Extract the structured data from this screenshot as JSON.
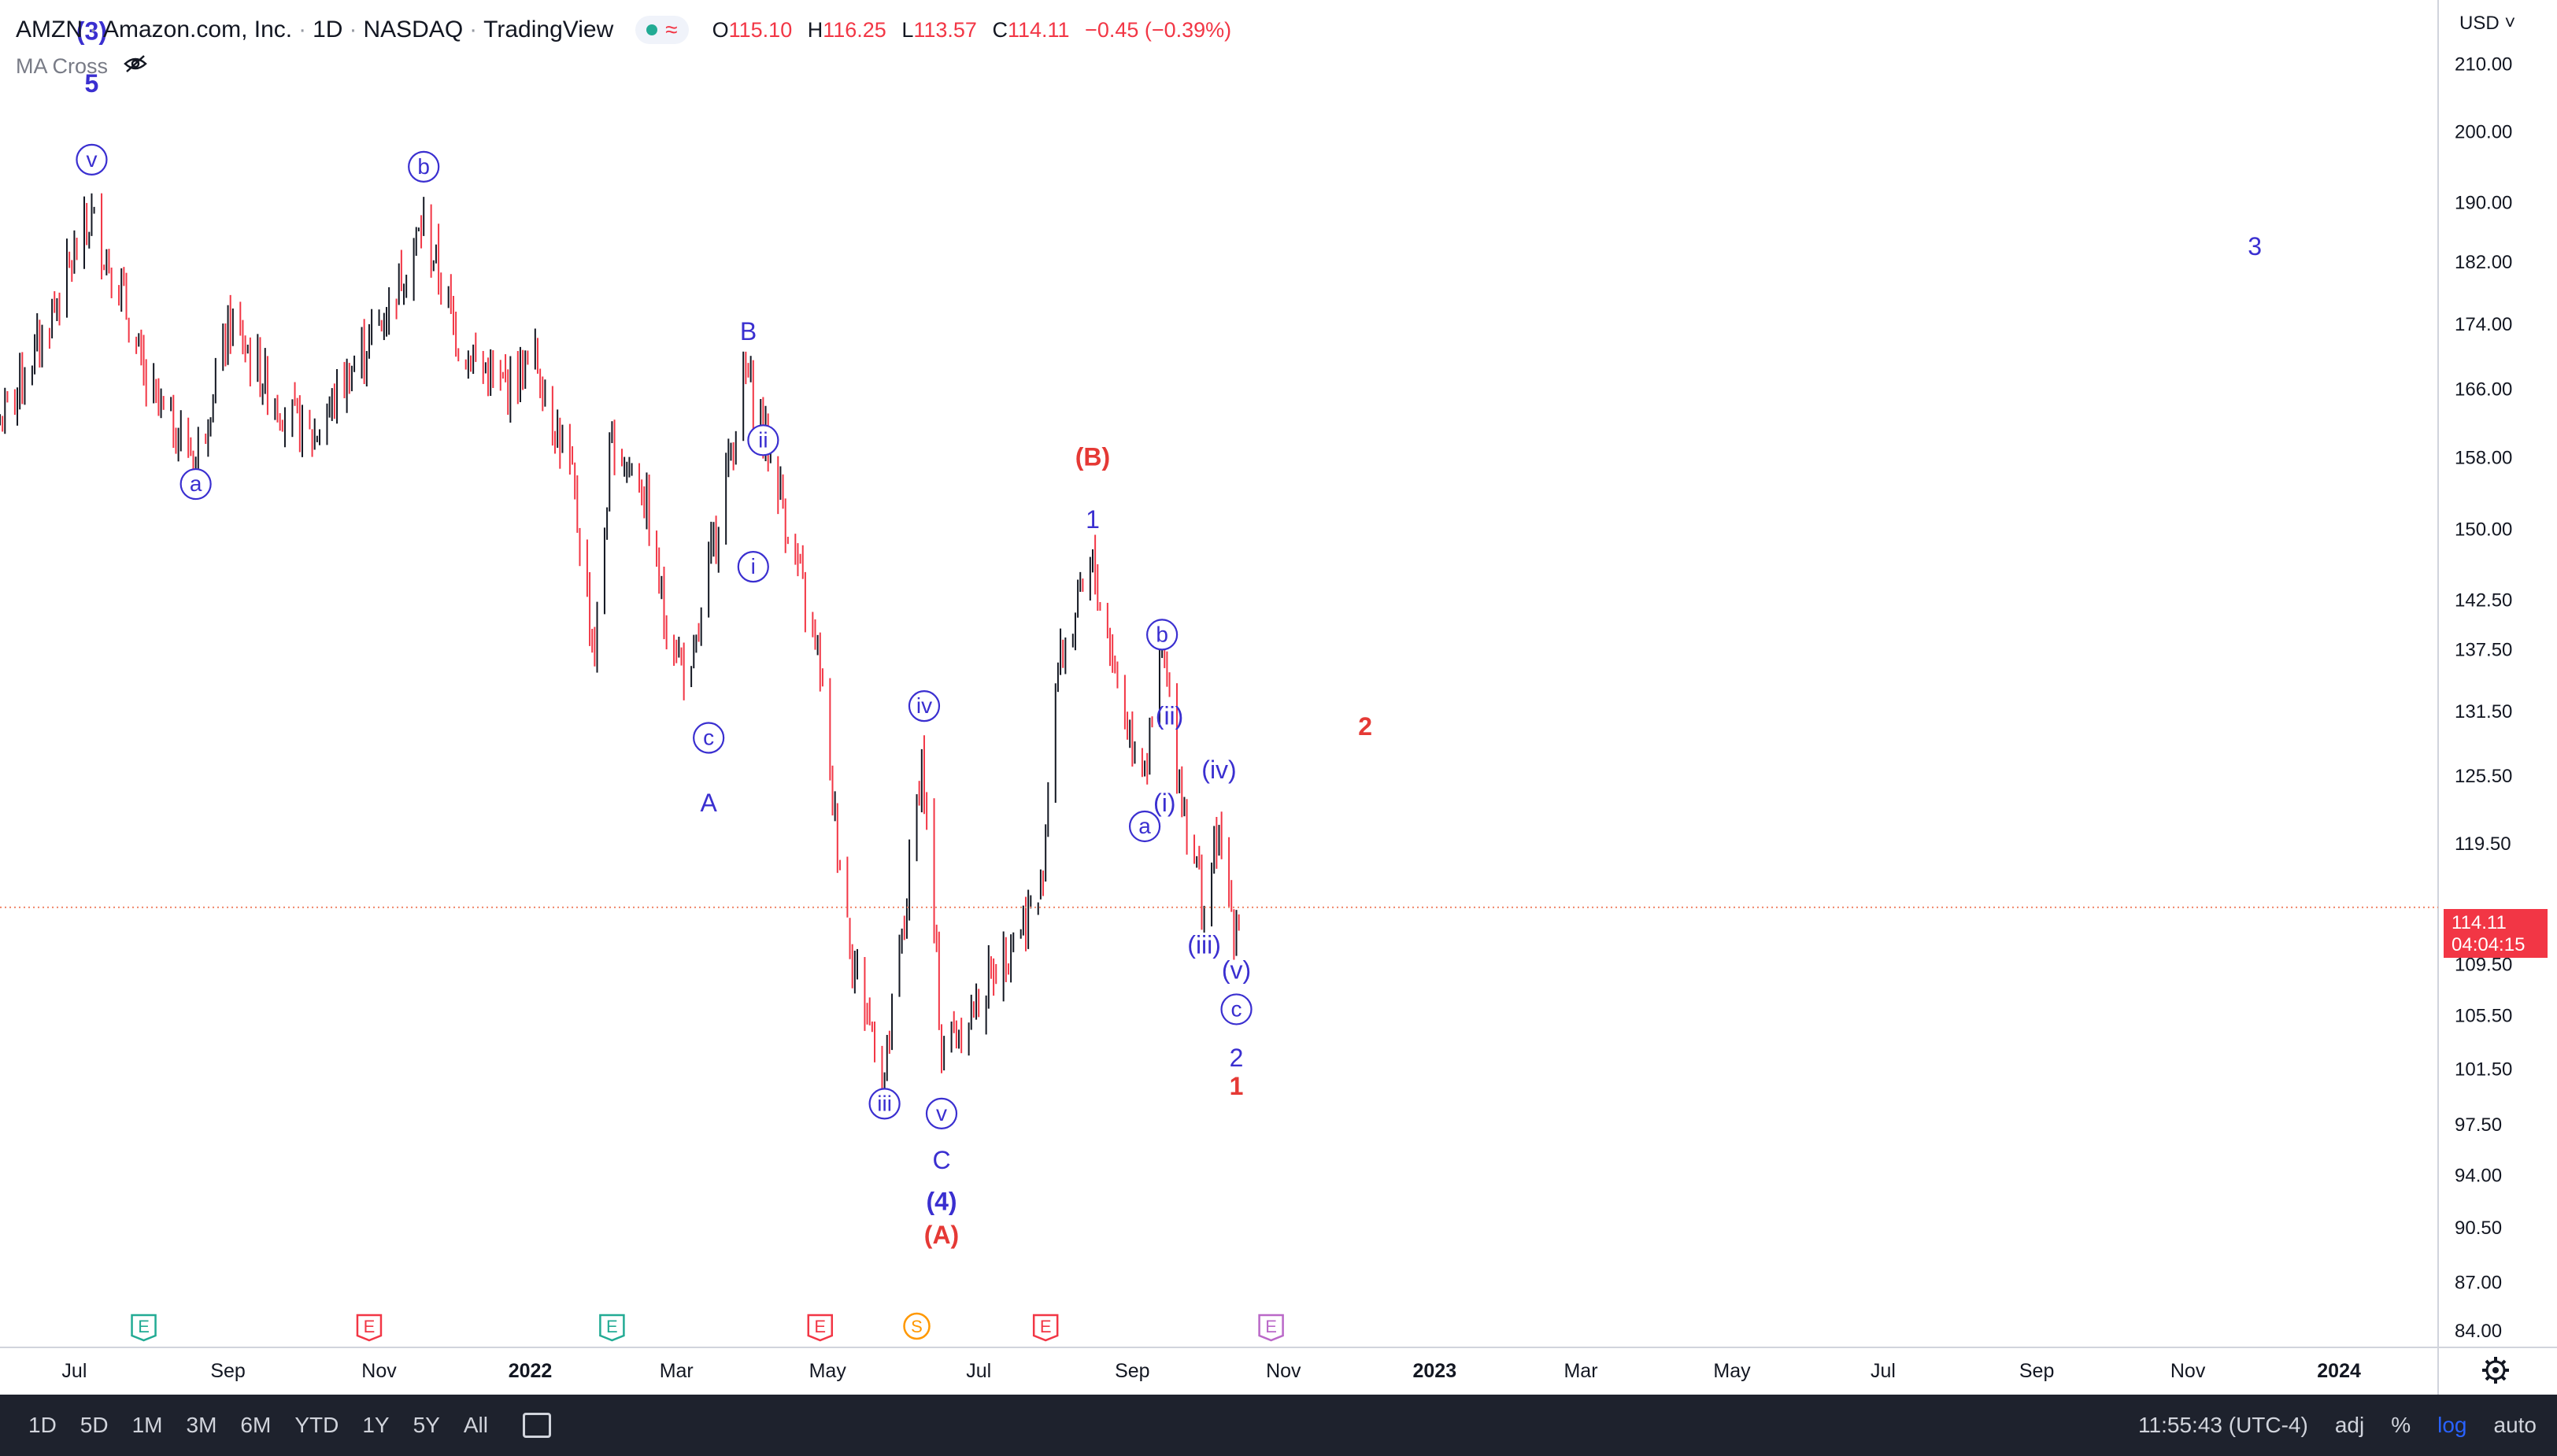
{
  "header": {
    "ticker": "AMZN",
    "company": "Amazon.com, Inc.",
    "interval": "1D",
    "exchange": "NASDAQ",
    "source": "TradingView",
    "o_label": "O",
    "o_value": "115.10",
    "h_label": "H",
    "h_value": "116.25",
    "l_label": "L",
    "l_value": "113.57",
    "c_label": "C",
    "c_value": "114.11",
    "change": "−0.45 (−0.39%)"
  },
  "indicator": {
    "name": "MA Cross",
    "icon": "eye-off-icon"
  },
  "currency": "USD",
  "current_price": {
    "price": "114.11",
    "countdown": "04:04:15"
  },
  "colors": {
    "up": "#131722",
    "down": "#f23645",
    "wave_blue": "#3a2fd0",
    "wave_red": "#e53935",
    "price_line": "#f0866a"
  },
  "bottom_bar": {
    "ranges": [
      "1D",
      "5D",
      "1M",
      "3M",
      "6M",
      "YTD",
      "1Y",
      "5Y",
      "All"
    ],
    "time": "11:55:43 (UTC-4)",
    "adj": "adj",
    "pct": "%",
    "log": "log",
    "auto": "auto"
  },
  "chart_data": {
    "type": "candlestick",
    "y_scale": "log",
    "ylim": [
      83,
      220
    ],
    "xlim": [
      "2021-06-01",
      "2024-02-10"
    ],
    "y_ticks": [
      "84.00",
      "87.00",
      "90.50",
      "94.00",
      "97.50",
      "101.50",
      "105.50",
      "109.50",
      "114.11",
      "119.50",
      "125.50",
      "131.50",
      "137.50",
      "142.50",
      "150.00",
      "158.00",
      "166.00",
      "174.00",
      "182.00",
      "190.00",
      "200.00",
      "210.00"
    ],
    "x_ticks": [
      {
        "label": "Jul",
        "date": "2021-07-01"
      },
      {
        "label": "Sep",
        "date": "2021-09-01"
      },
      {
        "label": "Nov",
        "date": "2021-11-01"
      },
      {
        "label": "2022",
        "date": "2022-01-01",
        "bold": true
      },
      {
        "label": "Mar",
        "date": "2022-03-01"
      },
      {
        "label": "May",
        "date": "2022-05-01"
      },
      {
        "label": "Jul",
        "date": "2022-07-01"
      },
      {
        "label": "Sep",
        "date": "2022-09-01"
      },
      {
        "label": "Nov",
        "date": "2022-11-01"
      },
      {
        "label": "2023",
        "date": "2023-01-01",
        "bold": true
      },
      {
        "label": "Mar",
        "date": "2023-03-01"
      },
      {
        "label": "May",
        "date": "2023-05-01"
      },
      {
        "label": "Jul",
        "date": "2023-07-01"
      },
      {
        "label": "Sep",
        "date": "2023-09-01"
      },
      {
        "label": "Nov",
        "date": "2023-11-01"
      },
      {
        "label": "2024",
        "date": "2024-01-01",
        "bold": true
      }
    ],
    "price_path": [
      [
        "2021-06-01",
        162
      ],
      [
        "2021-06-16",
        171
      ],
      [
        "2021-07-08",
        188
      ],
      [
        "2021-07-20",
        178
      ],
      [
        "2021-07-30",
        166
      ],
      [
        "2021-08-19",
        158
      ],
      [
        "2021-09-02",
        174
      ],
      [
        "2021-09-20",
        165
      ],
      [
        "2021-10-05",
        160
      ],
      [
        "2021-10-20",
        168
      ],
      [
        "2021-11-03",
        175
      ],
      [
        "2021-11-19",
        187
      ],
      [
        "2021-12-03",
        172
      ],
      [
        "2021-12-20",
        166
      ],
      [
        "2022-01-03",
        170
      ],
      [
        "2022-01-18",
        155
      ],
      [
        "2022-01-27",
        137
      ],
      [
        "2022-02-03",
        160
      ],
      [
        "2022-02-15",
        155
      ],
      [
        "2022-02-24",
        141
      ],
      [
        "2022-03-07",
        134
      ],
      [
        "2022-03-15",
        147
      ],
      [
        "2022-03-29",
        168
      ],
      [
        "2022-04-11",
        155
      ],
      [
        "2022-04-22",
        142
      ],
      [
        "2022-04-28",
        136
      ],
      [
        "2022-05-02",
        125
      ],
      [
        "2022-05-11",
        110
      ],
      [
        "2022-05-24",
        101
      ],
      [
        "2022-06-01",
        113
      ],
      [
        "2022-06-08",
        127
      ],
      [
        "2022-06-16",
        103
      ],
      [
        "2022-06-29",
        106
      ],
      [
        "2022-07-12",
        111
      ],
      [
        "2022-07-26",
        115
      ],
      [
        "2022-08-01",
        135
      ],
      [
        "2022-08-16",
        146
      ],
      [
        "2022-08-30",
        130
      ],
      [
        "2022-09-07",
        127
      ],
      [
        "2022-09-13",
        137
      ],
      [
        "2022-09-21",
        124
      ],
      [
        "2022-09-30",
        114
      ],
      [
        "2022-10-05",
        120
      ],
      [
        "2022-10-12",
        113
      ],
      [
        "2022-10-15",
        114
      ]
    ],
    "wave_labels": [
      {
        "text": "(3)",
        "date": "2021-07-08",
        "price": 215,
        "style": "bold",
        "color": "blue"
      },
      {
        "text": "5",
        "date": "2021-07-08",
        "price": 207,
        "style": "bold",
        "color": "blue"
      },
      {
        "text": "v",
        "date": "2021-07-08",
        "price": 196,
        "style": "circle",
        "color": "blue"
      },
      {
        "text": "a",
        "date": "2021-08-19",
        "price": 155,
        "style": "circle",
        "color": "blue"
      },
      {
        "text": "b",
        "date": "2021-11-19",
        "price": 195,
        "style": "circle",
        "color": "blue"
      },
      {
        "text": "B",
        "date": "2022-03-30",
        "price": 173,
        "style": "plain",
        "color": "blue"
      },
      {
        "text": "ii",
        "date": "2022-04-05",
        "price": 160,
        "style": "circle",
        "color": "blue"
      },
      {
        "text": "i",
        "date": "2022-04-01",
        "price": 146,
        "style": "circle",
        "color": "blue"
      },
      {
        "text": "c",
        "date": "2022-03-14",
        "price": 129,
        "style": "circle",
        "color": "blue"
      },
      {
        "text": "A",
        "date": "2022-03-14",
        "price": 123,
        "style": "plain",
        "color": "blue"
      },
      {
        "text": "iv",
        "date": "2022-06-09",
        "price": 132,
        "style": "circle",
        "color": "blue"
      },
      {
        "text": "iii",
        "date": "2022-05-24",
        "price": 99.0,
        "style": "circle",
        "color": "blue"
      },
      {
        "text": "v",
        "date": "2022-06-16",
        "price": 98.3,
        "style": "circle",
        "color": "blue"
      },
      {
        "text": "C",
        "date": "2022-06-16",
        "price": 95.0,
        "style": "plain",
        "color": "blue"
      },
      {
        "text": "(4)",
        "date": "2022-06-16",
        "price": 92.2,
        "style": "bold",
        "color": "blue"
      },
      {
        "text": "(A)",
        "date": "2022-06-16",
        "price": 90.0,
        "style": "bold",
        "color": "red"
      },
      {
        "text": "(B)",
        "date": "2022-08-16",
        "price": 158,
        "style": "bold",
        "color": "red"
      },
      {
        "text": "1",
        "date": "2022-08-16",
        "price": 151,
        "style": "plain",
        "color": "blue"
      },
      {
        "text": "b",
        "date": "2022-09-13",
        "price": 139,
        "style": "circle",
        "color": "blue"
      },
      {
        "text": "(ii)",
        "date": "2022-09-16",
        "price": 131,
        "style": "plain",
        "color": "blue"
      },
      {
        "text": "a",
        "date": "2022-09-06",
        "price": 121,
        "style": "circle",
        "color": "blue"
      },
      {
        "text": "(i)",
        "date": "2022-09-14",
        "price": 123,
        "style": "plain",
        "color": "blue"
      },
      {
        "text": "(iv)",
        "date": "2022-10-06",
        "price": 126,
        "style": "plain",
        "color": "blue"
      },
      {
        "text": "(iii)",
        "date": "2022-09-30",
        "price": 111,
        "style": "plain",
        "color": "blue"
      },
      {
        "text": "(v)",
        "date": "2022-10-13",
        "price": 109,
        "style": "plain",
        "color": "blue"
      },
      {
        "text": "c",
        "date": "2022-10-13",
        "price": 106,
        "style": "circle",
        "color": "blue"
      },
      {
        "text": "2",
        "date": "2022-10-13",
        "price": 102.3,
        "style": "plain",
        "color": "blue"
      },
      {
        "text": "1",
        "date": "2022-10-13",
        "price": 100.2,
        "style": "bold",
        "color": "red"
      },
      {
        "text": "2",
        "date": "2022-12-04",
        "price": 130,
        "style": "bold",
        "color": "red"
      },
      {
        "text": "3",
        "date": "2023-11-28",
        "price": 184,
        "style": "plain",
        "color": "blue"
      }
    ],
    "events": [
      {
        "text": "E",
        "date": "2021-07-29",
        "color": "#22ab94"
      },
      {
        "text": "E",
        "date": "2021-10-28",
        "color": "#f23645"
      },
      {
        "text": "E",
        "date": "2022-02-03",
        "color": "#22ab94"
      },
      {
        "text": "E",
        "date": "2022-04-28",
        "color": "#f23645"
      },
      {
        "text": "S",
        "date": "2022-06-06",
        "color": "#ff9800"
      },
      {
        "text": "E",
        "date": "2022-07-28",
        "color": "#f23645"
      },
      {
        "text": "E",
        "date": "2022-10-27",
        "color": "#ba68c8"
      }
    ]
  }
}
